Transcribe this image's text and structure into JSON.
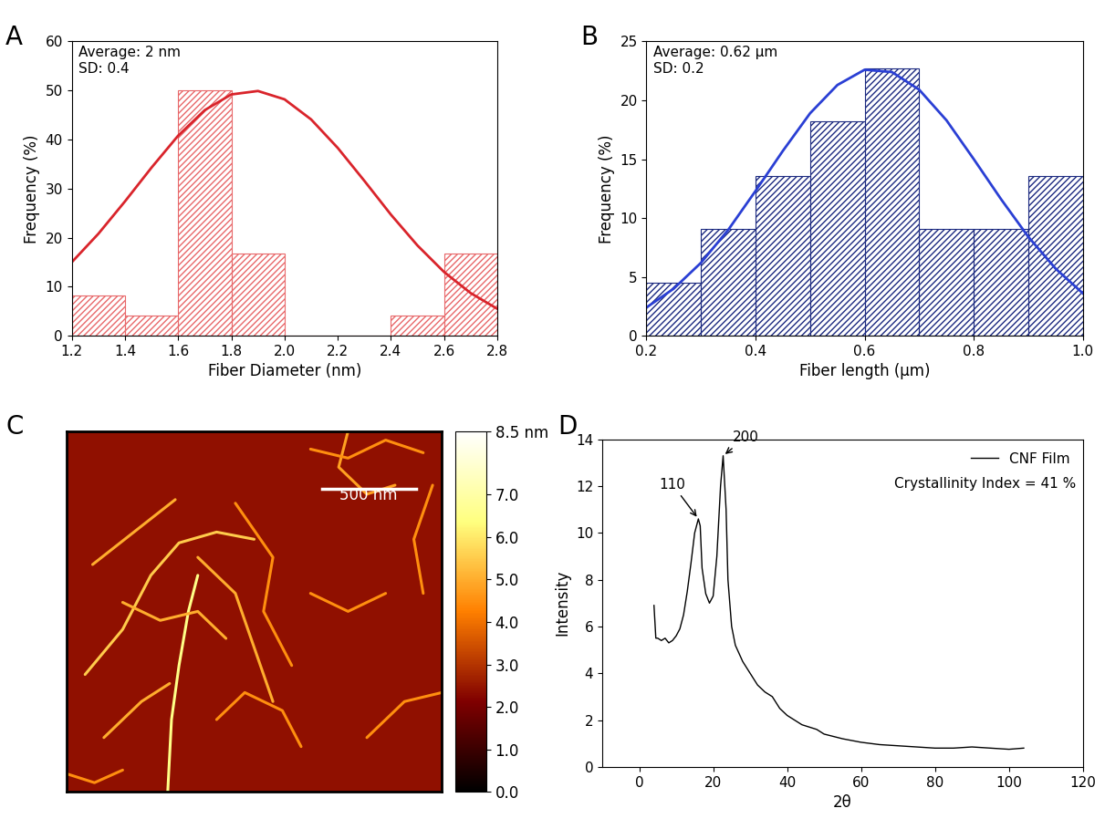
{
  "chart_data": [
    {
      "title": "A",
      "type": "histogram",
      "bins": [
        1.2,
        1.4,
        1.6,
        1.8,
        2.0,
        2.2,
        2.4,
        2.6,
        2.8
      ],
      "counts": [
        8.3,
        4.2,
        50,
        16.7,
        0,
        0,
        4.2,
        16.7
      ],
      "color": "#e8686a",
      "curve": {
        "type": "line",
        "color": "#d9242b",
        "x": [
          1.2,
          1.3,
          1.4,
          1.5,
          1.6,
          1.7,
          1.8,
          1.9,
          2.0,
          2.1,
          2.2,
          2.3,
          2.4,
          2.5,
          2.6,
          2.7,
          2.8
        ],
        "values": [
          15.0,
          20.8,
          27.4,
          34.3,
          40.8,
          46.0,
          49.2,
          49.9,
          48.2,
          44.1,
          38.3,
          31.6,
          24.7,
          18.4,
          13.0,
          8.7,
          5.5
        ]
      },
      "x_label": "Fiber Diameter (nm)",
      "y_label": "Frequency (%)",
      "annotations": [
        "Average: 2 nm",
        "SD: 0.4"
      ],
      "xlim": [
        1.2,
        2.8
      ],
      "xticks": [
        1.2,
        1.4,
        1.6,
        1.8,
        2.0,
        2.2,
        2.4,
        2.6,
        2.8
      ],
      "ylim": [
        0,
        60
      ],
      "yticks": [
        0,
        10,
        20,
        30,
        40,
        50,
        60
      ]
    },
    {
      "title": "B",
      "type": "histogram",
      "bins": [
        0.2,
        0.3,
        0.4,
        0.5,
        0.6,
        0.7,
        0.8,
        0.9,
        1.0
      ],
      "counts": [
        4.5,
        9.1,
        13.6,
        18.2,
        22.7,
        9.1,
        9.1,
        13.6
      ],
      "color": "#1c2a80",
      "curve": {
        "type": "line",
        "color": "#2a3fd4",
        "x": [
          0.2,
          0.25,
          0.3,
          0.35,
          0.4,
          0.45,
          0.5,
          0.55,
          0.6,
          0.65,
          0.7,
          0.75,
          0.8,
          0.85,
          0.9,
          0.95,
          1.0
        ],
        "values": [
          2.4,
          4.0,
          6.2,
          9.0,
          12.3,
          15.7,
          18.9,
          21.3,
          22.6,
          22.4,
          20.9,
          18.3,
          15.0,
          11.6,
          8.4,
          5.7,
          3.6
        ]
      },
      "x_label": "Fiber length (μm)",
      "y_label": "Frequency (%)",
      "annotations": [
        "Average: 0.62 μm",
        "SD: 0.2"
      ],
      "xlim": [
        0.2,
        1.0
      ],
      "xticks": [
        0.2,
        0.4,
        0.6,
        0.8,
        1.0
      ],
      "ylim": [
        0,
        25
      ],
      "yticks": [
        0,
        5,
        10,
        15,
        20,
        25
      ]
    },
    {
      "title": "C",
      "type": "image",
      "tick_labels": false,
      "xlim": [
        0,
        2000
      ],
      "ylim": [
        2000,
        0
      ],
      "background_height": 2.4,
      "fibers": [
        {
          "x": [
            540,
            560,
            600,
            650,
            700
          ],
          "y": [
            2000,
            1600,
            1300,
            1000,
            800
          ],
          "height": 6.5
        },
        {
          "x": [
            100,
            300,
            450,
            600,
            800,
            1000
          ],
          "y": [
            1350,
            1100,
            800,
            620,
            560,
            600
          ],
          "height": 5.5
        },
        {
          "x": [
            140,
            580
          ],
          "y": [
            740,
            380
          ],
          "height": 5.0
        },
        {
          "x": [
            1500,
            1450,
            1600,
            1750
          ],
          "y": [
            0,
            200,
            350,
            300
          ],
          "height": 4.8
        },
        {
          "x": [
            1300,
            1500,
            1700,
            1900
          ],
          "y": [
            100,
            150,
            50,
            120
          ],
          "height": 4.5
        },
        {
          "x": [
            700,
            900,
            1000,
            1100
          ],
          "y": [
            700,
            900,
            1200,
            1500
          ],
          "height": 5.0
        },
        {
          "x": [
            900,
            1100,
            1050,
            1200
          ],
          "y": [
            400,
            700,
            1000,
            1300
          ],
          "height": 4.5
        },
        {
          "x": [
            200,
            400,
            550
          ],
          "y": [
            1700,
            1500,
            1400
          ],
          "height": 5.0
        },
        {
          "x": [
            1600,
            1800,
            2000
          ],
          "y": [
            1700,
            1500,
            1450
          ],
          "height": 4.5
        },
        {
          "x": [
            0,
            150,
            300
          ],
          "y": [
            1900,
            1950,
            1880
          ],
          "height": 4.5
        },
        {
          "x": [
            1300,
            1500,
            1700
          ],
          "y": [
            900,
            1000,
            900
          ],
          "height": 4.5
        },
        {
          "x": [
            300,
            500,
            700,
            850
          ],
          "y": [
            950,
            1050,
            1000,
            1150
          ],
          "height": 5.0
        },
        {
          "x": [
            800,
            950,
            1150,
            1250
          ],
          "y": [
            1600,
            1450,
            1550,
            1750
          ],
          "height": 4.5
        },
        {
          "x": [
            1950,
            1850,
            1900
          ],
          "y": [
            300,
            600,
            900
          ],
          "height": 4.5
        }
      ],
      "scale_bar": 500,
      "scale_bar_label": "500 nm",
      "colorbar_range": [
        0,
        8.5
      ],
      "colorbar_ticks": [
        {
          "value": 0.0,
          "label": "0.0"
        },
        {
          "value": 1.0,
          "label": "1.0"
        },
        {
          "value": 2.0,
          "label": "2.0"
        },
        {
          "value": 3.0,
          "label": "3.0"
        },
        {
          "value": 4.0,
          "label": "4.0"
        },
        {
          "value": 5.0,
          "label": "5.0"
        },
        {
          "value": 6.0,
          "label": "6.0"
        },
        {
          "value": 7.0,
          "label": "7.0"
        },
        {
          "value": 8.5,
          "label": "8.5 nm"
        }
      ]
    },
    {
      "title": "D",
      "type": "line",
      "legend": "upper right",
      "series": [
        {
          "name": "CNF Film",
          "color": "#000000",
          "x": [
            4,
            4.5,
            5,
            6,
            7,
            8,
            9,
            10,
            11,
            12,
            13,
            14,
            15,
            16,
            16.5,
            17,
            18,
            19,
            20,
            21,
            22,
            22.7,
            23.5,
            24,
            25,
            26,
            28,
            30,
            32,
            34,
            36,
            38,
            40,
            44,
            48,
            50,
            55,
            60,
            65,
            70,
            75,
            80,
            85,
            90,
            95,
            100,
            104
          ],
          "values": [
            6.9,
            5.5,
            5.5,
            5.4,
            5.5,
            5.3,
            5.4,
            5.6,
            5.9,
            6.5,
            7.5,
            8.7,
            10.0,
            10.6,
            10.3,
            8.5,
            7.4,
            7.0,
            7.3,
            9.0,
            12.0,
            13.3,
            11.0,
            8.0,
            6.0,
            5.2,
            4.5,
            4.0,
            3.5,
            3.2,
            3.0,
            2.5,
            2.2,
            1.8,
            1.6,
            1.4,
            1.2,
            1.05,
            0.95,
            0.9,
            0.85,
            0.8,
            0.8,
            0.85,
            0.8,
            0.75,
            0.8
          ]
        }
      ],
      "x_label": "2θ",
      "y_label": "Intensity",
      "annotations": [
        {
          "text": "Crystallinity Index = 41 %"
        },
        {
          "text": "110",
          "x": 16,
          "y": 10.6
        },
        {
          "text": "200",
          "x": 22.7,
          "y": 13.3
        }
      ],
      "xlim": [
        -10,
        120
      ],
      "xticks": [
        0,
        20,
        40,
        60,
        80,
        100,
        120
      ],
      "ylim": [
        0,
        14
      ],
      "yticks": [
        0,
        2,
        4,
        6,
        8,
        10,
        12,
        14
      ]
    }
  ]
}
